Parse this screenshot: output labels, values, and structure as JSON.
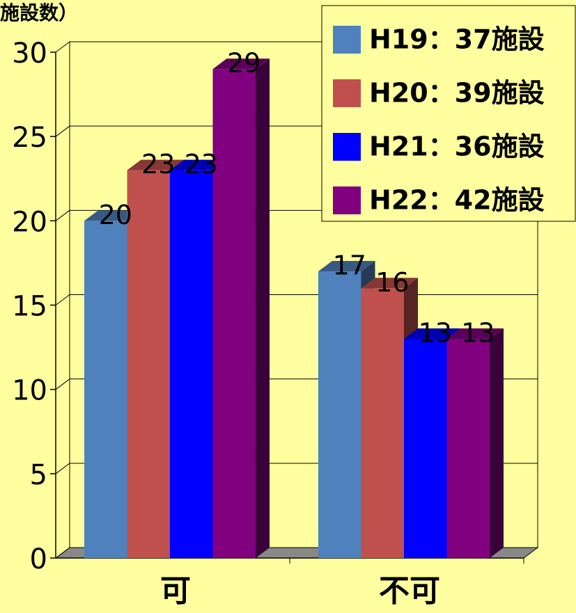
{
  "chart_data": {
    "type": "bar3d",
    "y_label": "施設数）",
    "categories": [
      "可",
      "不可"
    ],
    "series": [
      {
        "name": "H19：37施設",
        "color": "#4f81bd",
        "values": [
          20,
          17
        ]
      },
      {
        "name": "H20：39施設",
        "color": "#c0504d",
        "values": [
          23,
          16
        ]
      },
      {
        "name": "H21：36施設",
        "color": "#0000ff",
        "values": [
          23,
          13
        ]
      },
      {
        "name": "H22：42施設",
        "color": "#800080",
        "values": [
          29,
          13
        ]
      }
    ],
    "ylim": [
      0,
      30
    ],
    "yticks": [
      0,
      5,
      10,
      15,
      20,
      25,
      30
    ],
    "grid": true,
    "legend": "top-right"
  }
}
